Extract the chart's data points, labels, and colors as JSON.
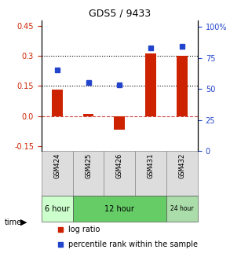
{
  "title": "GDS5 / 9433",
  "samples": [
    "GSM424",
    "GSM425",
    "GSM426",
    "GSM431",
    "GSM432"
  ],
  "log_ratio": [
    0.13,
    0.01,
    -0.07,
    0.31,
    0.3
  ],
  "percentile_rank": [
    65,
    55,
    53,
    83,
    84
  ],
  "time_groups": [
    {
      "label": "6 hour",
      "samples": [
        "GSM424"
      ],
      "color": "#b3ffb3"
    },
    {
      "label": "12 hour",
      "samples": [
        "GSM425",
        "GSM426",
        "GSM431"
      ],
      "color": "#66dd66"
    },
    {
      "label": "24 hour",
      "samples": [
        "GSM432"
      ],
      "color": "#99ee99"
    }
  ],
  "ylim_left": [
    -0.175,
    0.475
  ],
  "ylim_right": [
    0,
    105
  ],
  "yticks_left": [
    -0.15,
    0.0,
    0.15,
    0.3,
    0.45
  ],
  "yticks_right": [
    0,
    25,
    50,
    75,
    100
  ],
  "ytick_labels_right": [
    "0",
    "25",
    "50",
    "75",
    "100%"
  ],
  "hlines": [
    0.15,
    0.3
  ],
  "bar_color": "#cc2200",
  "dot_color": "#2244cc",
  "zero_line_color": "#cc4444",
  "hline_color": "#000000",
  "bg_color": "#ffffff",
  "plot_bg_color": "#ffffff",
  "legend_log_ratio_label": "log ratio",
  "legend_percentile_label": "percentile rank within the sample",
  "time_label": "time",
  "group_colors": [
    "#ccffcc",
    "#88dd88",
    "#aaeaaa"
  ]
}
